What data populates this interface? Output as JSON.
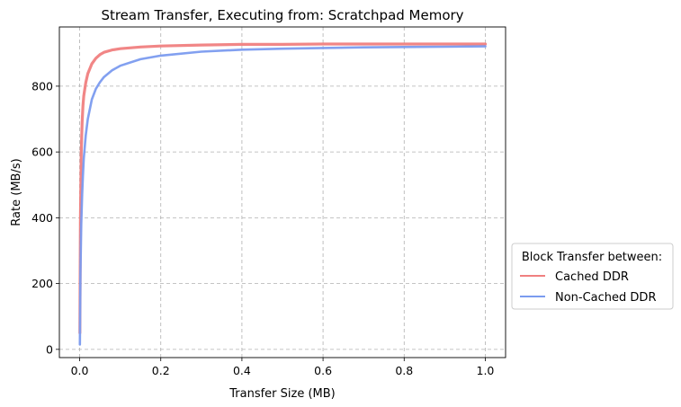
{
  "chart_data": {
    "type": "line",
    "title": "Stream Transfer, Executing from: Scratchpad Memory",
    "xlabel": "Transfer Size (MB)",
    "ylabel": "Rate (MB/s)",
    "xlim": [
      -0.05,
      1.05
    ],
    "ylim": [
      -25,
      980
    ],
    "xticks": [
      0.0,
      0.2,
      0.4,
      0.6,
      0.8,
      1.0
    ],
    "xtick_labels": [
      "0.0",
      "0.2",
      "0.4",
      "0.6",
      "0.8",
      "1.0"
    ],
    "yticks": [
      0,
      200,
      400,
      600,
      800
    ],
    "ytick_labels": [
      "0",
      "200",
      "400",
      "600",
      "800"
    ],
    "grid": true,
    "legend": {
      "title": "Block Transfer between:",
      "placement": "outside-right"
    },
    "series": [
      {
        "name": "Cached DDR",
        "color": "#f08080",
        "x": [
          0.0005,
          0.002,
          0.004,
          0.006,
          0.008,
          0.01,
          0.015,
          0.02,
          0.03,
          0.04,
          0.05,
          0.06,
          0.08,
          0.1,
          0.15,
          0.2,
          0.3,
          0.4,
          0.5,
          0.6,
          0.7,
          0.8,
          0.9,
          1.0
        ],
        "y": [
          50,
          400,
          600,
          690,
          740,
          770,
          810,
          838,
          868,
          885,
          896,
          903,
          910,
          914,
          919,
          922,
          925,
          927,
          927,
          928,
          928,
          928,
          928,
          928
        ]
      },
      {
        "name": "Non-Cached DDR",
        "color": "#7b9bef",
        "x": [
          0.0005,
          0.002,
          0.004,
          0.006,
          0.008,
          0.01,
          0.015,
          0.02,
          0.03,
          0.04,
          0.05,
          0.06,
          0.08,
          0.1,
          0.15,
          0.2,
          0.3,
          0.4,
          0.5,
          0.6,
          0.7,
          0.8,
          0.9,
          1.0
        ],
        "y": [
          15,
          230,
          380,
          470,
          530,
          580,
          650,
          700,
          760,
          792,
          812,
          828,
          848,
          862,
          882,
          893,
          905,
          911,
          914,
          916,
          918,
          919,
          920,
          921
        ]
      }
    ]
  }
}
